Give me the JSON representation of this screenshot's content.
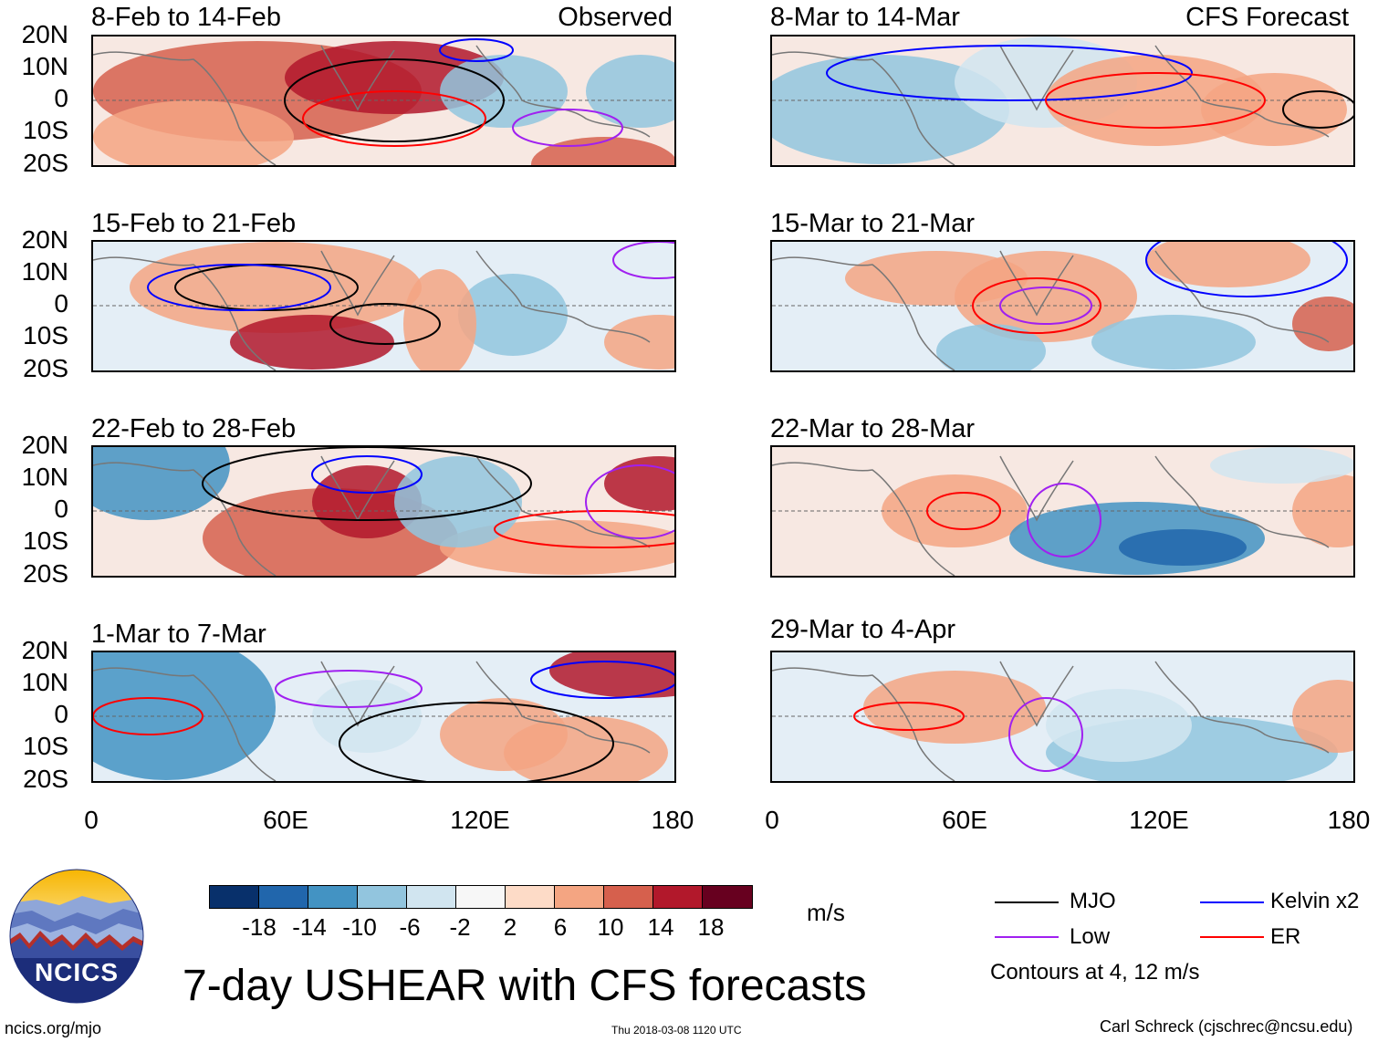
{
  "main_title": "7-day USHEAR with CFS forecasts",
  "observed_label": "Observed",
  "forecast_label": "CFS Forecast",
  "panels_left": [
    {
      "title": "8-Feb to 14-Feb"
    },
    {
      "title": "15-Feb to 21-Feb"
    },
    {
      "title": "22-Feb to 28-Feb"
    },
    {
      "title": "1-Mar to 7-Mar"
    }
  ],
  "panels_right": [
    {
      "title": "8-Mar to 14-Mar"
    },
    {
      "title": "15-Mar to 21-Mar"
    },
    {
      "title": "22-Mar to 28-Mar"
    },
    {
      "title": "29-Mar to 4-Apr"
    }
  ],
  "y_ticks": [
    "20N",
    "10N",
    "0",
    "10S",
    "20S"
  ],
  "x_ticks": [
    "0",
    "60E",
    "120E",
    "180"
  ],
  "colorbar": {
    "colors": [
      "#08306b",
      "#2166ac",
      "#4393c3",
      "#92c5de",
      "#d1e5f0",
      "#f7f7f7",
      "#fddbc7",
      "#f4a582",
      "#d6604d",
      "#b2182b",
      "#67001f"
    ],
    "labels": [
      "-18",
      "-14",
      "-10",
      "-6",
      "-2",
      "2",
      "6",
      "10",
      "14",
      "18"
    ],
    "units": "m/s"
  },
  "legend": {
    "items": [
      {
        "name": "MJO",
        "color": "#000000"
      },
      {
        "name": "Kelvin x2",
        "color": "#0000ff"
      },
      {
        "name": "Low",
        "color": "#a020f0"
      },
      {
        "name": "ER",
        "color": "#ff0000"
      }
    ],
    "note": "Contours at 4, 12 m/s"
  },
  "logo_text": "NCICS",
  "footer": {
    "url": "ncics.org/mjo",
    "timestamp": "Thu 2018-03-08 1120 UTC",
    "credit": "Carl Schreck (cjschrec@ncsu.edu)"
  }
}
